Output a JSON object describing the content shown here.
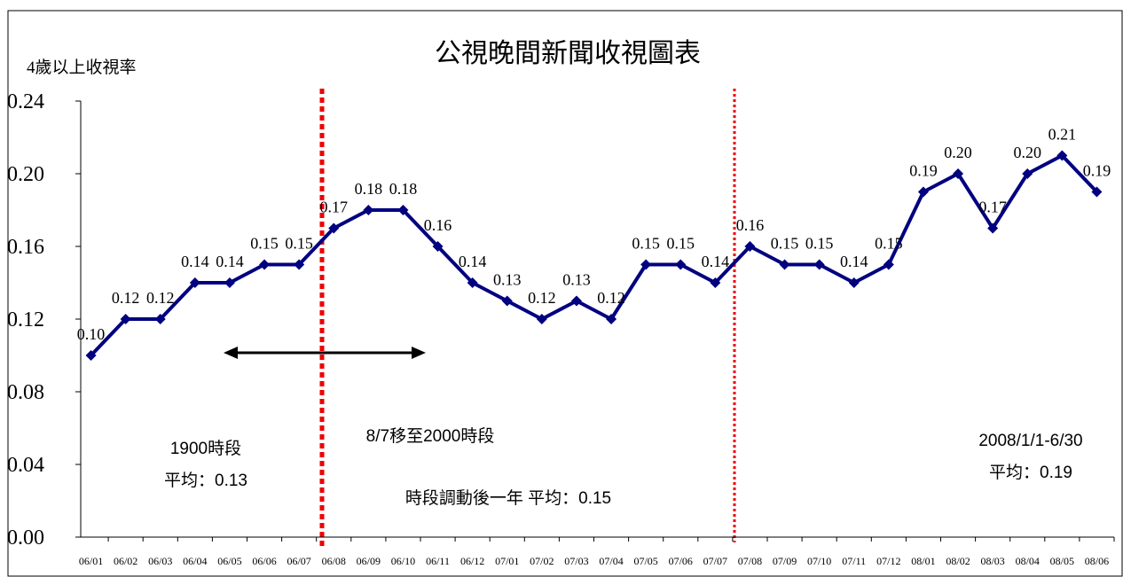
{
  "chart_data": {
    "type": "line",
    "title": "公視晚間新聞收視圖表",
    "y_axis_label": "4歲以上收視率",
    "categories": [
      "06/01",
      "06/02",
      "06/03",
      "06/04",
      "06/05",
      "06/06",
      "06/07",
      "06/08",
      "06/09",
      "06/10",
      "06/11",
      "06/12",
      "07/01",
      "07/02",
      "07/03",
      "07/04",
      "07/05",
      "07/06",
      "07/07",
      "07/08",
      "07/09",
      "07/10",
      "07/11",
      "07/12",
      "08/01",
      "08/02",
      "08/03",
      "08/04",
      "08/05",
      "08/06"
    ],
    "series": [
      {
        "name": "收視率",
        "color": "#000080",
        "values": [
          0.1,
          0.12,
          0.12,
          0.14,
          0.14,
          0.15,
          0.15,
          0.17,
          0.18,
          0.18,
          0.16,
          0.14,
          0.13,
          0.12,
          0.13,
          0.12,
          0.15,
          0.15,
          0.14,
          0.16,
          0.15,
          0.15,
          0.14,
          0.15,
          0.19,
          0.2,
          0.17,
          0.2,
          0.21,
          0.19
        ],
        "value_labels": [
          "0.10",
          "0.12",
          "0.12",
          "0.14",
          "0.14",
          "0.15",
          "0.15",
          "0.17",
          "0.18",
          "0.18",
          "0.16",
          "0.14",
          "0.13",
          "0.12",
          "0.13",
          "0.12",
          "0.15",
          "0.15",
          "0.14",
          "0.16",
          "0.15",
          "0.15",
          "0.14",
          "0.15",
          "0.19",
          "0.20",
          "0.17",
          "0.20",
          "0.21",
          "0.19"
        ]
      }
    ],
    "ylim": [
      0,
      0.24
    ],
    "yticks": [
      {
        "value": 0,
        "label": "0.00"
      },
      0.04,
      0.08,
      0.12,
      0.16,
      {
        "value": 0.2,
        "label": "0.20"
      },
      0.24
    ],
    "annotations": [
      "1900時段",
      "平均：0.13",
      "8/7移至2000時段",
      "時段調動後一年  平均：0.15",
      "2008/1/1-6/30",
      "平均：0.19"
    ]
  }
}
